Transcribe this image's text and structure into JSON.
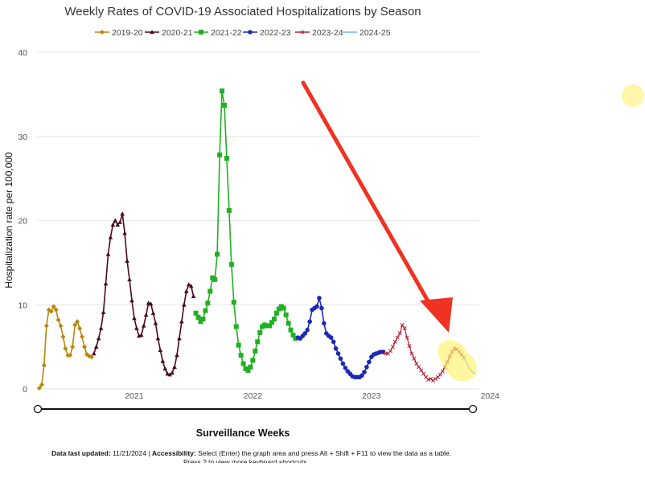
{
  "chart_data": {
    "type": "line",
    "title": "Weekly Rates of COVID-19 Associated Hospitalizations by Season",
    "xlabel": "Surveillance Weeks",
    "ylabel": "Hospitalization rate per 100,000",
    "ylim": [
      0,
      40
    ],
    "y_ticks": [
      "0",
      "10",
      "20",
      "30",
      "40"
    ],
    "x_ticks": [
      "2021",
      "2022",
      "2023",
      "2024"
    ],
    "grid": "horizontal",
    "legend_position": "top-center",
    "series": [
      {
        "name": "2019-20",
        "color": "#b8860b",
        "marker": "diamond",
        "points": [
          [
            2020.2,
            0.1
          ],
          [
            2020.22,
            0.5
          ],
          [
            2020.24,
            2.8
          ],
          [
            2020.26,
            7.5
          ],
          [
            2020.28,
            9.4
          ],
          [
            2020.3,
            9.2
          ],
          [
            2020.32,
            9.8
          ],
          [
            2020.34,
            9.4
          ],
          [
            2020.36,
            8.2
          ],
          [
            2020.38,
            7.5
          ],
          [
            2020.4,
            6.2
          ],
          [
            2020.42,
            4.8
          ],
          [
            2020.44,
            4.0
          ],
          [
            2020.46,
            4.0
          ],
          [
            2020.48,
            5.0
          ],
          [
            2020.5,
            7.6
          ],
          [
            2020.52,
            8.0
          ],
          [
            2020.54,
            7.2
          ],
          [
            2020.56,
            6.2
          ],
          [
            2020.58,
            5.0
          ],
          [
            2020.6,
            4.1
          ],
          [
            2020.62,
            3.9
          ],
          [
            2020.64,
            3.8
          ]
        ]
      },
      {
        "name": "2020-21",
        "color": "#4a0a1f",
        "marker": "triangle",
        "points": [
          [
            2020.66,
            4.2
          ],
          [
            2020.68,
            5.0
          ],
          [
            2020.7,
            6.0
          ],
          [
            2020.72,
            7.2
          ],
          [
            2020.74,
            9.1
          ],
          [
            2020.76,
            12.5
          ],
          [
            2020.78,
            16.0
          ],
          [
            2020.8,
            18.0
          ],
          [
            2020.82,
            19.5
          ],
          [
            2020.84,
            20.0
          ],
          [
            2020.86,
            19.5
          ],
          [
            2020.88,
            19.8
          ],
          [
            2020.9,
            20.8
          ],
          [
            2020.92,
            18.5
          ],
          [
            2020.94,
            15.2
          ],
          [
            2020.96,
            13.0
          ],
          [
            2020.98,
            10.5
          ],
          [
            2021.0,
            8.4
          ],
          [
            2021.02,
            7.2
          ],
          [
            2021.04,
            6.3
          ],
          [
            2021.06,
            6.4
          ],
          [
            2021.08,
            7.5
          ],
          [
            2021.1,
            8.8
          ],
          [
            2021.12,
            10.2
          ],
          [
            2021.14,
            10.1
          ],
          [
            2021.16,
            9.0
          ],
          [
            2021.18,
            7.8
          ],
          [
            2021.2,
            6.0
          ],
          [
            2021.22,
            4.6
          ],
          [
            2021.24,
            3.3
          ],
          [
            2021.26,
            2.4
          ],
          [
            2021.28,
            1.8
          ],
          [
            2021.3,
            1.7
          ],
          [
            2021.32,
            1.9
          ],
          [
            2021.34,
            2.6
          ],
          [
            2021.36,
            4.0
          ],
          [
            2021.38,
            6.0
          ],
          [
            2021.4,
            8.0
          ],
          [
            2021.42,
            10.0
          ],
          [
            2021.44,
            11.6
          ],
          [
            2021.46,
            12.4
          ],
          [
            2021.48,
            12.2
          ],
          [
            2021.5,
            11.0
          ]
        ]
      },
      {
        "name": "2021-22",
        "color": "#22b022",
        "marker": "square",
        "points": [
          [
            2021.52,
            9.0
          ],
          [
            2021.54,
            8.5
          ],
          [
            2021.56,
            8.0
          ],
          [
            2021.58,
            8.3
          ],
          [
            2021.6,
            9.3
          ],
          [
            2021.62,
            10.2
          ],
          [
            2021.64,
            11.6
          ],
          [
            2021.66,
            13.2
          ],
          [
            2021.68,
            13.0
          ],
          [
            2021.7,
            16.0
          ],
          [
            2021.72,
            27.8
          ],
          [
            2021.74,
            35.4
          ],
          [
            2021.76,
            33.7
          ],
          [
            2021.78,
            27.4
          ],
          [
            2021.8,
            21.2
          ],
          [
            2021.82,
            14.8
          ],
          [
            2021.84,
            10.3
          ],
          [
            2021.86,
            7.4
          ],
          [
            2021.88,
            5.2
          ],
          [
            2021.9,
            4.0
          ],
          [
            2021.92,
            3.0
          ],
          [
            2021.94,
            2.4
          ],
          [
            2021.96,
            2.2
          ],
          [
            2021.98,
            2.6
          ],
          [
            2022.0,
            3.4
          ],
          [
            2022.02,
            4.5
          ],
          [
            2022.04,
            5.6
          ],
          [
            2022.06,
            6.7
          ],
          [
            2022.08,
            7.4
          ],
          [
            2022.1,
            7.6
          ],
          [
            2022.12,
            7.5
          ],
          [
            2022.14,
            7.5
          ],
          [
            2022.16,
            7.9
          ],
          [
            2022.18,
            8.3
          ],
          [
            2022.2,
            9.0
          ],
          [
            2022.22,
            9.5
          ],
          [
            2022.24,
            9.8
          ],
          [
            2022.26,
            9.6
          ],
          [
            2022.28,
            8.8
          ],
          [
            2022.3,
            7.8
          ],
          [
            2022.32,
            7.0
          ],
          [
            2022.34,
            6.4
          ],
          [
            2022.36,
            6.0
          ]
        ]
      },
      {
        "name": "2022-23",
        "color": "#1b2ab5",
        "marker": "circle",
        "points": [
          [
            2022.38,
            6.1
          ],
          [
            2022.4,
            6.0
          ],
          [
            2022.42,
            6.3
          ],
          [
            2022.44,
            6.6
          ],
          [
            2022.46,
            7.0
          ],
          [
            2022.48,
            8.0
          ],
          [
            2022.5,
            9.4
          ],
          [
            2022.52,
            9.6
          ],
          [
            2022.54,
            9.8
          ],
          [
            2022.56,
            10.8
          ],
          [
            2022.58,
            9.6
          ],
          [
            2022.6,
            7.8
          ],
          [
            2022.62,
            6.6
          ],
          [
            2022.64,
            6.3
          ],
          [
            2022.66,
            6.1
          ],
          [
            2022.68,
            5.6
          ],
          [
            2022.7,
            4.8
          ],
          [
            2022.72,
            4.2
          ],
          [
            2022.74,
            3.6
          ],
          [
            2022.76,
            3.0
          ],
          [
            2022.78,
            2.5
          ],
          [
            2022.8,
            2.1
          ],
          [
            2022.82,
            1.8
          ],
          [
            2022.84,
            1.5
          ],
          [
            2022.86,
            1.4
          ],
          [
            2022.88,
            1.4
          ],
          [
            2022.9,
            1.4
          ],
          [
            2022.92,
            1.6
          ],
          [
            2022.94,
            2.0
          ],
          [
            2022.96,
            2.6
          ],
          [
            2022.98,
            3.2
          ],
          [
            2023.0,
            3.8
          ],
          [
            2023.02,
            4.1
          ],
          [
            2023.04,
            4.2
          ],
          [
            2023.06,
            4.3
          ],
          [
            2023.08,
            4.4
          ],
          [
            2023.1,
            4.4
          ]
        ]
      },
      {
        "name": "2023-24",
        "color": "#b22234",
        "marker": "x",
        "points": [
          [
            2023.12,
            4.2
          ],
          [
            2023.14,
            4.2
          ],
          [
            2023.16,
            4.5
          ],
          [
            2023.18,
            5.0
          ],
          [
            2023.2,
            5.6
          ],
          [
            2023.22,
            6.1
          ],
          [
            2023.24,
            6.6
          ],
          [
            2023.26,
            7.6
          ],
          [
            2023.28,
            7.2
          ],
          [
            2023.3,
            6.1
          ],
          [
            2023.32,
            5.1
          ],
          [
            2023.34,
            4.2
          ],
          [
            2023.36,
            3.6
          ],
          [
            2023.38,
            3.0
          ],
          [
            2023.4,
            2.6
          ],
          [
            2023.42,
            2.2
          ],
          [
            2023.44,
            1.8
          ],
          [
            2023.46,
            1.4
          ],
          [
            2023.48,
            1.1
          ],
          [
            2023.5,
            1.2
          ],
          [
            2023.52,
            1.0
          ],
          [
            2023.54,
            1.2
          ],
          [
            2023.56,
            1.4
          ],
          [
            2023.58,
            1.7
          ],
          [
            2023.6,
            2.1
          ],
          [
            2023.62,
            2.6
          ],
          [
            2023.64,
            3.2
          ],
          [
            2023.66,
            3.8
          ],
          [
            2023.68,
            4.4
          ],
          [
            2023.7,
            4.8
          ],
          [
            2023.72,
            4.7
          ],
          [
            2023.74,
            4.4
          ],
          [
            2023.76,
            4.1
          ],
          [
            2023.78,
            3.7
          ]
        ]
      },
      {
        "name": "2024-25",
        "color": "#63bfe0",
        "marker": "none",
        "points": [
          [
            2023.78,
            3.7
          ],
          [
            2023.8,
            3.2
          ],
          [
            2023.82,
            2.6
          ],
          [
            2023.84,
            2.2
          ],
          [
            2023.86,
            1.9
          ],
          [
            2023.88,
            1.8
          ]
        ]
      }
    ]
  },
  "footer": {
    "updated_label": "Data last updated:",
    "updated_value": "11/21/2024",
    "separator": "|",
    "access_label": "Accessibility:",
    "access_text": "Select (Enter) the graph area and press Alt + Shift + F11 to view the data as a table.",
    "access_text2": "Press ? to view more keyboard shortcuts."
  }
}
